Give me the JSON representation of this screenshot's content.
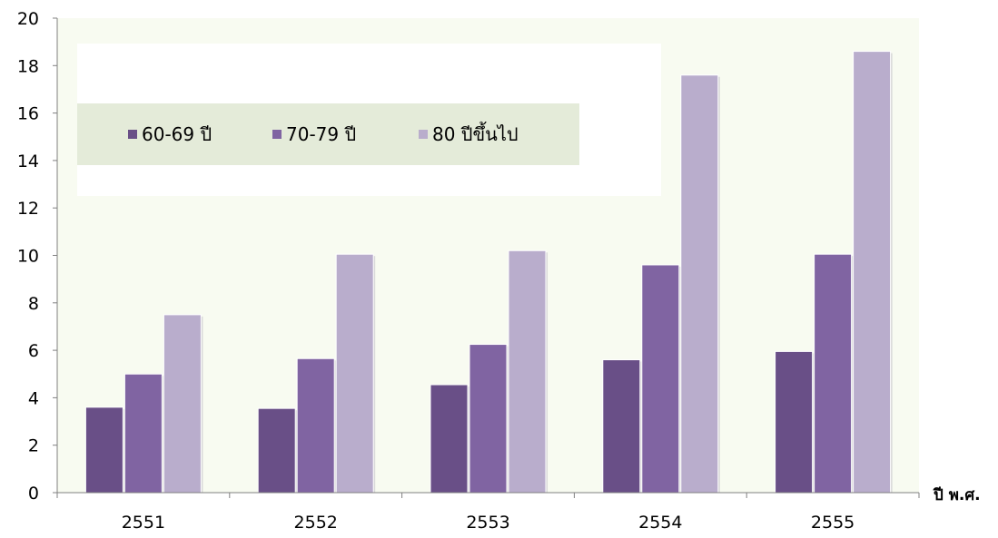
{
  "chart_data": {
    "type": "bar",
    "categories": [
      "2551",
      "2552",
      "2553",
      "2554",
      "2555"
    ],
    "series": [
      {
        "name": "60-69 ปี",
        "values": [
          3.6,
          3.55,
          4.55,
          5.6,
          5.95
        ],
        "color": "#694F87"
      },
      {
        "name": "70-79 ปี",
        "values": [
          5.0,
          5.65,
          6.25,
          9.6,
          10.05
        ],
        "color": "#8064A2"
      },
      {
        "name": "80 ปีขึ้นไป",
        "values": [
          7.5,
          10.05,
          10.2,
          17.6,
          18.6
        ],
        "color": "#B9ADCC"
      }
    ],
    "title": "",
    "xlabel": "ปี พ.ศ.",
    "ylabel": "",
    "ylim": [
      0,
      20
    ],
    "yticks": [
      0,
      2,
      4,
      6,
      8,
      10,
      12,
      14,
      16,
      18,
      20
    ],
    "grid": false,
    "legend_position": "top-left",
    "plot_background": "#F8FBF1",
    "legend_band_color": "#E4EBD9"
  }
}
